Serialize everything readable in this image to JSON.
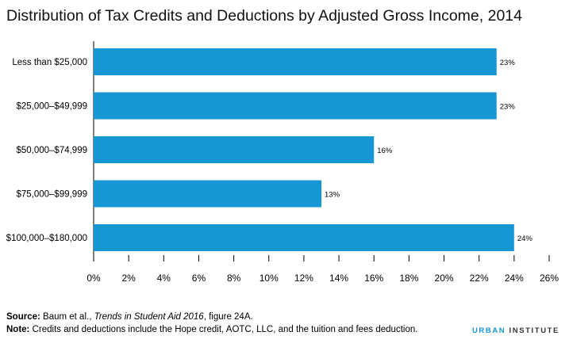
{
  "title": "Distribution of Tax Credits and Deductions by Adjusted Gross Income, 2014",
  "colors": {
    "bar": "#1696d2",
    "accent": "#1696d2"
  },
  "chart_data": {
    "type": "bar",
    "orientation": "horizontal",
    "categories": [
      "Less than $25,000",
      "$25,000–$49,999",
      "$50,000–$74,999",
      "$75,000–$99,999",
      "$100,000–$180,000"
    ],
    "values": [
      23,
      23,
      16,
      13,
      24
    ],
    "data_labels": [
      "23%",
      "23%",
      "16%",
      "13%",
      "24%"
    ],
    "xlim": [
      0,
      26
    ],
    "xticks": [
      "0%",
      "2%",
      "4%",
      "6%",
      "8%",
      "10%",
      "12%",
      "14%",
      "16%",
      "18%",
      "20%",
      "22%",
      "24%",
      "26%"
    ],
    "grid": false,
    "legend": "none"
  },
  "footer": {
    "source_label": "Source:",
    "source_prefix": " Baum et al., ",
    "source_italic": "Trends in Student Aid 2016",
    "source_suffix": ", figure 24A.",
    "note_label": "Note:",
    "note_text": " Credits and deductions include the Hope credit, AOTC, LLC, and the tuition and fees deduction."
  },
  "brand": {
    "part1": "URBAN",
    "part2": "INSTITUTE"
  }
}
